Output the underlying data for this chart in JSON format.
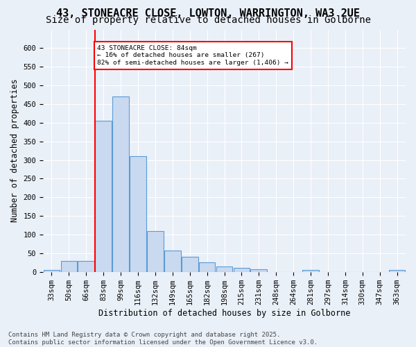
{
  "title": "43, STONEACRE CLOSE, LOWTON, WARRINGTON, WA3 2UE",
  "subtitle": "Size of property relative to detached houses in Golborne",
  "xlabel": "Distribution of detached houses by size in Golborne",
  "ylabel": "Number of detached properties",
  "bar_values": [
    5,
    30,
    30,
    405,
    470,
    310,
    110,
    57,
    40,
    25,
    14,
    11,
    6,
    0,
    0,
    5,
    0,
    0,
    0,
    0,
    5
  ],
  "categories": [
    "33sqm",
    "50sqm",
    "66sqm",
    "83sqm",
    "99sqm",
    "116sqm",
    "132sqm",
    "149sqm",
    "165sqm",
    "182sqm",
    "198sqm",
    "215sqm",
    "231sqm",
    "248sqm",
    "264sqm",
    "281sqm",
    "297sqm",
    "314sqm",
    "330sqm",
    "347sqm",
    "363sqm"
  ],
  "bar_color": "#c9d9f0",
  "bar_edge_color": "#5b9bd5",
  "vline_color": "red",
  "annotation_text": "43 STONEACRE CLOSE: 84sqm\n← 16% of detached houses are smaller (267)\n82% of semi-detached houses are larger (1,406) →",
  "annotation_box_color": "white",
  "annotation_box_edge_color": "red",
  "ylim_max": 650,
  "yticks": [
    0,
    50,
    100,
    150,
    200,
    250,
    300,
    350,
    400,
    450,
    500,
    550,
    600
  ],
  "footer_text": "Contains HM Land Registry data © Crown copyright and database right 2025.\nContains public sector information licensed under the Open Government Licence v3.0.",
  "bg_color": "#eaf0f8",
  "grid_color": "white",
  "title_fontsize": 11,
  "subtitle_fontsize": 10,
  "axis_label_fontsize": 8.5,
  "tick_fontsize": 7.5,
  "footer_fontsize": 6.5,
  "vline_bar_index": 3
}
